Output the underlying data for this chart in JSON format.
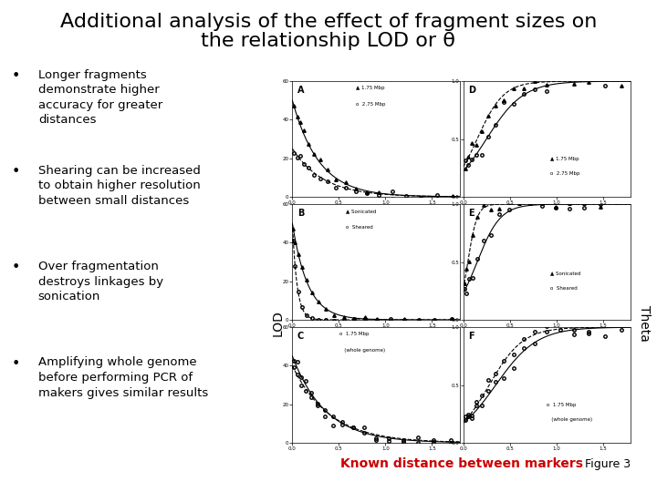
{
  "title_line1": "Additional analysis of the effect of fragment sizes on",
  "title_line2": "the relationship LOD or θ",
  "title_fontsize": 16,
  "title_color": "#000000",
  "bullet_points": [
    "Longer fragments\ndemonstrate higher\naccuracy for greater\ndistances",
    "Shearing can be increased\nto obtain higher resolution\nbetween small distances",
    "Over fragmentation\ndestroys linkages by\nsonication",
    "Amplifying whole genome\nbefore performing PCR of\nmakers gives similar results"
  ],
  "bullet_fontsize": 9.5,
  "bullet_color": "#000000",
  "footer_text": "Known distance between markers",
  "footer_color": "#cc0000",
  "footer_fontsize": 10,
  "figure_label": "Figure 3",
  "figure_label_fontsize": 9,
  "background_color": "#ffffff"
}
